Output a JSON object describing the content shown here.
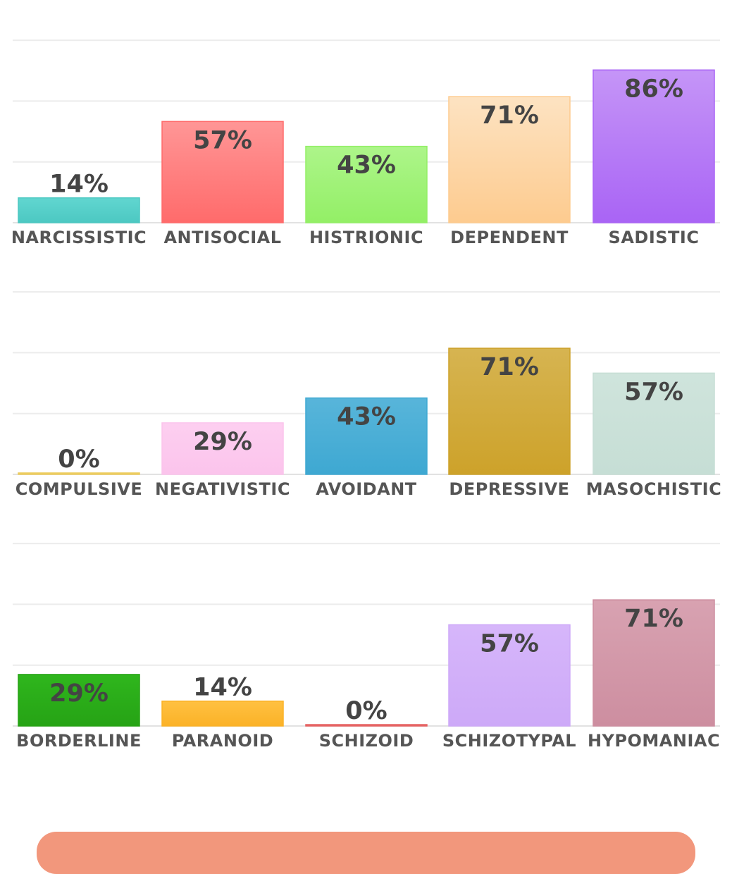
{
  "chart_data": [
    {
      "type": "bar",
      "ylim": [
        0,
        100
      ],
      "categories": [
        "NARCISSISTIC",
        "ANTISOCIAL",
        "HISTRIONIC",
        "DEPENDENT",
        "SADISTIC"
      ],
      "values": [
        14,
        57,
        43,
        71,
        86
      ],
      "value_labels": [
        "14%",
        "57%",
        "43%",
        "71%",
        "86%"
      ],
      "colors": [
        [
          "#61d6d0",
          "#4cc8c2"
        ],
        [
          "#ff9696",
          "#ff6b6b"
        ],
        [
          "#adf58a",
          "#93ef66"
        ],
        [
          "#fde3c2",
          "#fdcb8f"
        ],
        [
          "#c595f7",
          "#a964f5"
        ]
      ]
    },
    {
      "type": "bar",
      "ylim": [
        0,
        100
      ],
      "categories": [
        "COMPULSIVE",
        "NEGATIVISTIC",
        "AVOIDANT",
        "DEPRESSIVE",
        "MASOCHISTIC"
      ],
      "values": [
        0,
        29,
        43,
        71,
        57
      ],
      "value_labels": [
        "0%",
        "29%",
        "43%",
        "71%",
        "57%"
      ],
      "colors": [
        [
          "#f4d77a",
          "#eccb5c"
        ],
        [
          "#fdcff0",
          "#fbc4ec"
        ],
        [
          "#58b5da",
          "#3ea8d2"
        ],
        [
          "#d6b451",
          "#cda22a"
        ],
        [
          "#cfe4dc",
          "#c6ded5"
        ]
      ]
    },
    {
      "type": "bar",
      "ylim": [
        0,
        100
      ],
      "categories": [
        "BORDERLINE",
        "PARANOID",
        "SCHIZOID",
        "SCHIZOTYPAL",
        "HYPOMANIAC"
      ],
      "values": [
        29,
        14,
        0,
        57,
        71
      ],
      "value_labels": [
        "29%",
        "14%",
        "0%",
        "57%",
        "71%"
      ],
      "colors": [
        [
          "#2fb61d",
          "#26a315"
        ],
        [
          "#ffc142",
          "#fbb227"
        ],
        [
          "#ef7b7b",
          "#e56060"
        ],
        [
          "#d6b6fa",
          "#cda9f8"
        ],
        [
          "#d8a2b1",
          "#cd8ea0"
        ]
      ]
    }
  ]
}
